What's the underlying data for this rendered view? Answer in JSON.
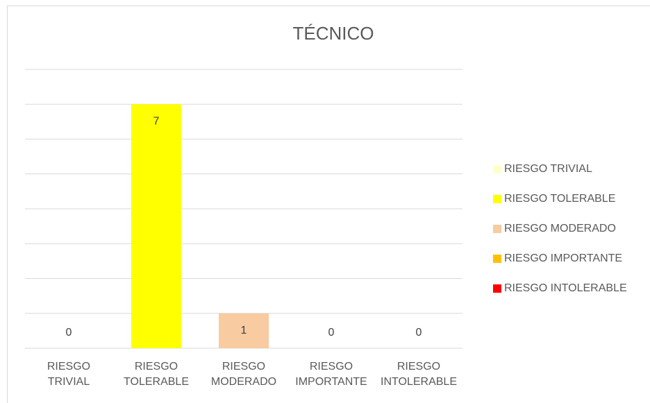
{
  "chart_data": {
    "type": "bar",
    "title": "TÉCNICO",
    "categories": [
      "RIESGO TRIVIAL",
      "RIESGO TOLERABLE",
      "RIESGO MODERADO",
      "RIESGO IMPORTANTE",
      "RIESGO INTOLERABLE"
    ],
    "values": [
      0,
      7,
      1,
      0,
      0
    ],
    "colors": [
      "#ffffcc",
      "#ffff00",
      "#f8cba0",
      "#ffc000",
      "#ff0000"
    ],
    "ylim": [
      0,
      8
    ],
    "yticks": [
      0,
      1,
      2,
      3,
      4,
      5,
      6,
      7,
      8
    ],
    "grid": true,
    "legend": "right"
  }
}
